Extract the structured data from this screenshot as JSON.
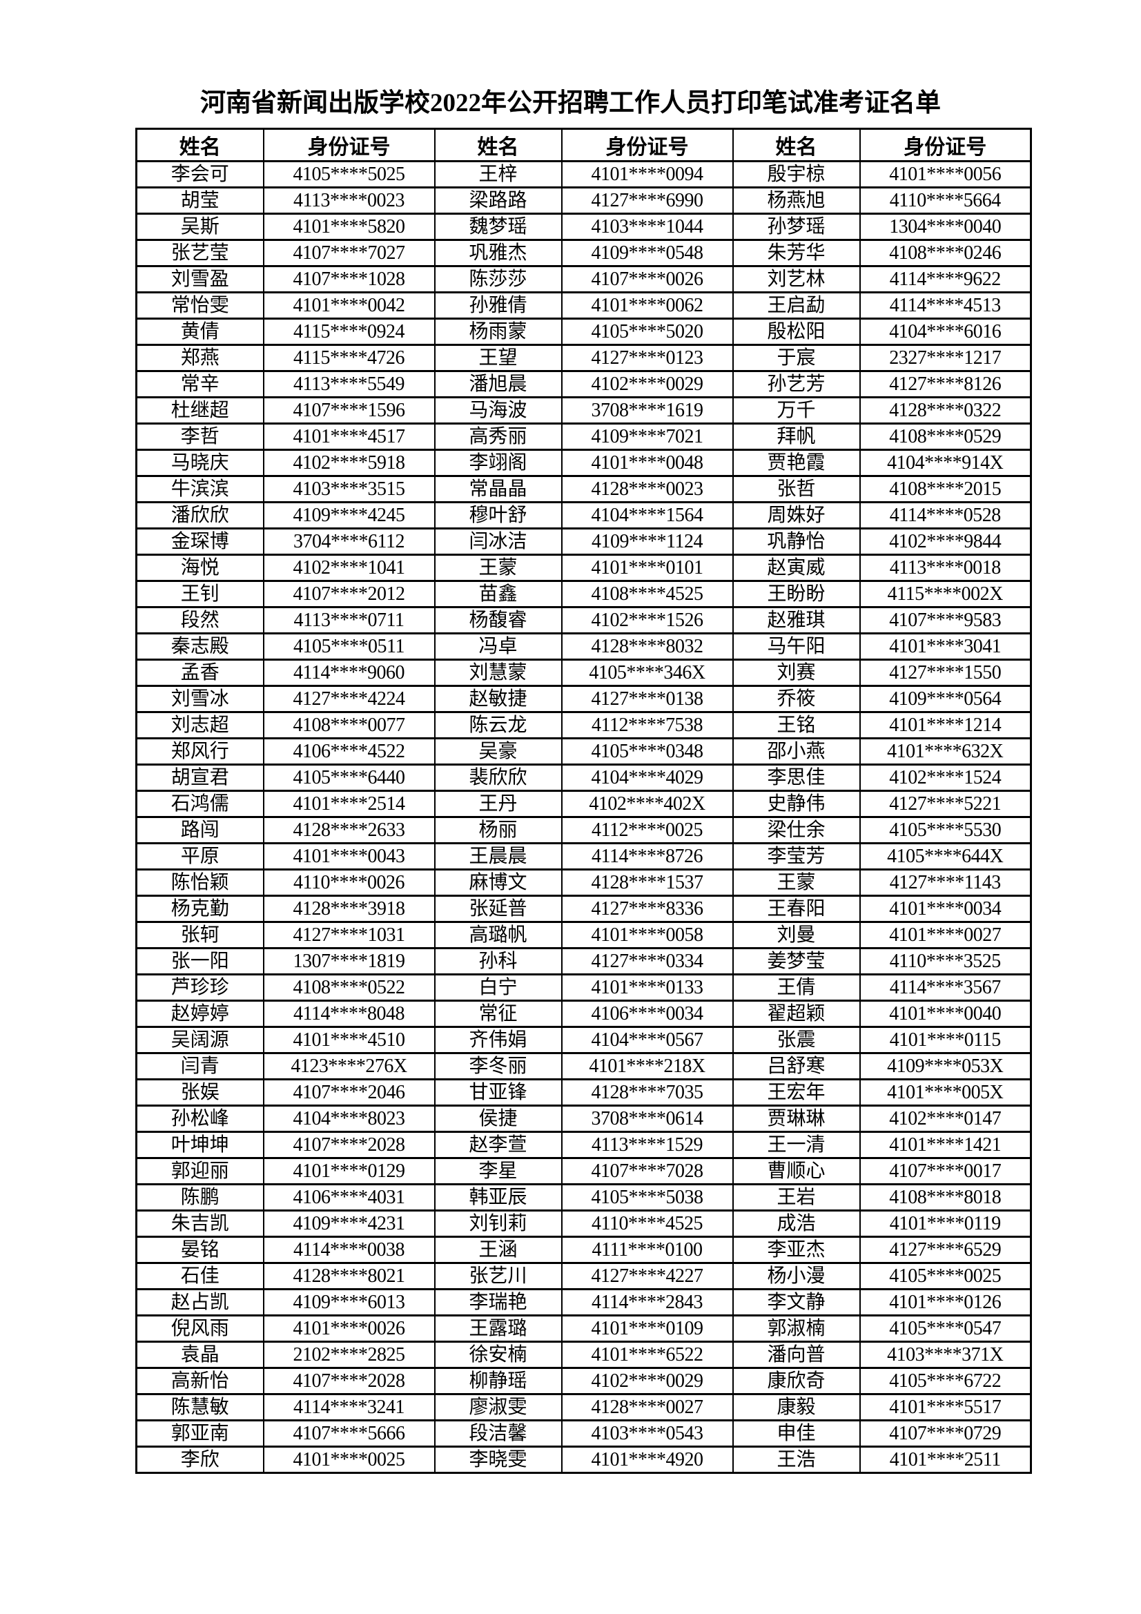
{
  "title": "河南省新闻出版学校2022年公开招聘工作人员打印笔试准考证名单",
  "columns": [
    "姓名",
    "身份证号",
    "姓名",
    "身份证号",
    "姓名",
    "身份证号"
  ],
  "rows": [
    [
      "李会可",
      "4105****5025",
      "王梓",
      "4101****0094",
      "殷宇椋",
      "4101****0056"
    ],
    [
      "胡莹",
      "4113****0023",
      "梁路路",
      "4127****6990",
      "杨燕旭",
      "4110****5664"
    ],
    [
      "吴斯",
      "4101****5820",
      "魏梦瑶",
      "4103****1044",
      "孙梦瑶",
      "1304****0040"
    ],
    [
      "张艺莹",
      "4107****7027",
      "巩雅杰",
      "4109****0548",
      "朱芳华",
      "4108****0246"
    ],
    [
      "刘雪盈",
      "4107****1028",
      "陈莎莎",
      "4107****0026",
      "刘艺林",
      "4114****9622"
    ],
    [
      "常怡雯",
      "4101****0042",
      "孙雅倩",
      "4101****0062",
      "王启勐",
      "4114****4513"
    ],
    [
      "黄倩",
      "4115****0924",
      "杨雨蒙",
      "4105****5020",
      "殷松阳",
      "4104****6016"
    ],
    [
      "郑燕",
      "4115****4726",
      "王望",
      "4127****0123",
      "于宸",
      "2327****1217"
    ],
    [
      "常辛",
      "4113****5549",
      "潘旭晨",
      "4102****0029",
      "孙艺芳",
      "4127****8126"
    ],
    [
      "杜继超",
      "4107****1596",
      "马海波",
      "3708****1619",
      "万千",
      "4128****0322"
    ],
    [
      "李哲",
      "4101****4517",
      "高秀丽",
      "4109****7021",
      "拜帆",
      "4108****0529"
    ],
    [
      "马晓庆",
      "4102****5918",
      "李翊阁",
      "4101****0048",
      "贾艳霞",
      "4104****914X"
    ],
    [
      "牛滨滨",
      "4103****3515",
      "常晶晶",
      "4128****0023",
      "张哲",
      "4108****2015"
    ],
    [
      "潘欣欣",
      "4109****4245",
      "穆叶舒",
      "4104****1564",
      "周姝好",
      "4114****0528"
    ],
    [
      "金琛博",
      "3704****6112",
      "闫冰洁",
      "4109****1124",
      "巩静怡",
      "4102****9844"
    ],
    [
      "海悦",
      "4102****1041",
      "王蒙",
      "4101****0101",
      "赵寅威",
      "4113****0018"
    ],
    [
      "王钊",
      "4107****2012",
      "苗鑫",
      "4108****4525",
      "王盼盼",
      "4115****002X"
    ],
    [
      "段然",
      "4113****0711",
      "杨馥睿",
      "4102****1526",
      "赵雅琪",
      "4107****9583"
    ],
    [
      "秦志殿",
      "4105****0511",
      "冯卓",
      "4128****8032",
      "马午阳",
      "4101****3041"
    ],
    [
      "孟香",
      "4114****9060",
      "刘慧蒙",
      "4105****346X",
      "刘赛",
      "4127****1550"
    ],
    [
      "刘雪冰",
      "4127****4224",
      "赵敏捷",
      "4127****0138",
      "乔筱",
      "4109****0564"
    ],
    [
      "刘志超",
      "4108****0077",
      "陈云龙",
      "4112****7538",
      "王铭",
      "4101****1214"
    ],
    [
      "郑风行",
      "4106****4522",
      "吴豪",
      "4105****0348",
      "邵小燕",
      "4101****632X"
    ],
    [
      "胡宣君",
      "4105****6440",
      "裴欣欣",
      "4104****4029",
      "李思佳",
      "4102****1524"
    ],
    [
      "石鸿儒",
      "4101****2514",
      "王丹",
      "4102****402X",
      "史静伟",
      "4127****5221"
    ],
    [
      "路闯",
      "4128****2633",
      "杨丽",
      "4112****0025",
      "梁仕余",
      "4105****5530"
    ],
    [
      "平原",
      "4101****0043",
      "王晨晨",
      "4114****8726",
      "李莹芳",
      "4105****644X"
    ],
    [
      "陈怡颖",
      "4110****0026",
      "麻博文",
      "4128****1537",
      "王蒙",
      "4127****1143"
    ],
    [
      "杨克勤",
      "4128****3918",
      "张延普",
      "4127****8336",
      "王春阳",
      "4101****0034"
    ],
    [
      "张轲",
      "4127****1031",
      "高璐帆",
      "4101****0058",
      "刘曼",
      "4101****0027"
    ],
    [
      "张一阳",
      "1307****1819",
      "孙科",
      "4127****0334",
      "姜梦莹",
      "4110****3525"
    ],
    [
      "芦珍珍",
      "4108****0522",
      "白宁",
      "4101****0133",
      "王倩",
      "4114****3567"
    ],
    [
      "赵婷婷",
      "4114****8048",
      "常征",
      "4106****0034",
      "翟超颖",
      "4101****0040"
    ],
    [
      "吴阔源",
      "4101****4510",
      "齐伟娟",
      "4104****0567",
      "张震",
      "4101****0115"
    ],
    [
      "闫青",
      "4123****276X",
      "李冬丽",
      "4101****218X",
      "吕舒寒",
      "4109****053X"
    ],
    [
      "张娱",
      "4107****2046",
      "甘亚锋",
      "4128****7035",
      "王宏年",
      "4101****005X"
    ],
    [
      "孙松峰",
      "4104****8023",
      "侯捷",
      "3708****0614",
      "贾琳琳",
      "4102****0147"
    ],
    [
      "叶坤坤",
      "4107****2028",
      "赵李萱",
      "4113****1529",
      "王一清",
      "4101****1421"
    ],
    [
      "郭迎丽",
      "4101****0129",
      "李星",
      "4107****7028",
      "曹顺心",
      "4107****0017"
    ],
    [
      "陈鹏",
      "4106****4031",
      "韩亚辰",
      "4105****5038",
      "王岩",
      "4108****8018"
    ],
    [
      "朱吉凯",
      "4109****4231",
      "刘钊莉",
      "4110****4525",
      "成浩",
      "4101****0119"
    ],
    [
      "晏铭",
      "4114****0038",
      "王涵",
      "4111****0100",
      "李亚杰",
      "4127****6529"
    ],
    [
      "石佳",
      "4128****8021",
      "张艺川",
      "4127****4227",
      "杨小漫",
      "4105****0025"
    ],
    [
      "赵占凯",
      "4109****6013",
      "李瑞艳",
      "4114****2843",
      "李文静",
      "4101****0126"
    ],
    [
      "倪风雨",
      "4101****0026",
      "王露璐",
      "4101****0109",
      "郭淑楠",
      "4105****0547"
    ],
    [
      "袁晶",
      "2102****2825",
      "徐安楠",
      "4101****6522",
      "潘向普",
      "4103****371X"
    ],
    [
      "高新怡",
      "4107****2028",
      "柳静瑶",
      "4102****0029",
      "康欣奇",
      "4105****6722"
    ],
    [
      "陈慧敏",
      "4114****3241",
      "廖淑雯",
      "4128****0027",
      "康毅",
      "4101****5517"
    ],
    [
      "郭亚南",
      "4107****5666",
      "段洁馨",
      "4103****0543",
      "申佳",
      "4107****0729"
    ],
    [
      "李欣",
      "4101****0025",
      "李晓雯",
      "4101****4920",
      "王浩",
      "4101****2511"
    ]
  ]
}
